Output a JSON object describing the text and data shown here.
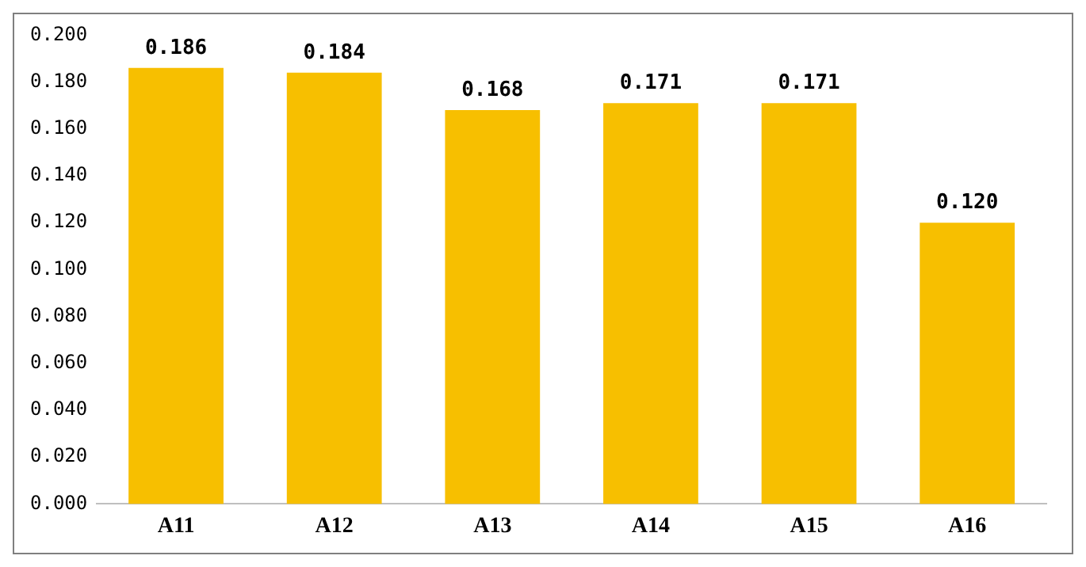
{
  "chart_data": {
    "type": "bar",
    "categories": [
      "A11",
      "A12",
      "A13",
      "A14",
      "A15",
      "A16"
    ],
    "values": [
      0.186,
      0.184,
      0.168,
      0.171,
      0.171,
      0.12
    ],
    "value_labels": [
      "0.186",
      "0.184",
      "0.168",
      "0.171",
      "0.171",
      "0.120"
    ],
    "color": "#f7bf00",
    "ylim": [
      0,
      0.2
    ],
    "yticks": [
      {
        "value": 0,
        "label": "0.000"
      },
      {
        "value": 0.02,
        "label": "0.020"
      },
      {
        "value": 0.04,
        "label": "0.040"
      },
      {
        "value": 0.06,
        "label": "0.060"
      },
      {
        "value": 0.08,
        "label": "0.080"
      },
      {
        "value": 0.1,
        "label": "0.100"
      },
      {
        "value": 0.12,
        "label": "0.120"
      },
      {
        "value": 0.14,
        "label": "0.140"
      },
      {
        "value": 0.16,
        "label": "0.160"
      },
      {
        "value": 0.18,
        "label": "0.180"
      },
      {
        "value": 0.2,
        "label": "0.200"
      }
    ],
    "grid": false,
    "legend": false
  }
}
